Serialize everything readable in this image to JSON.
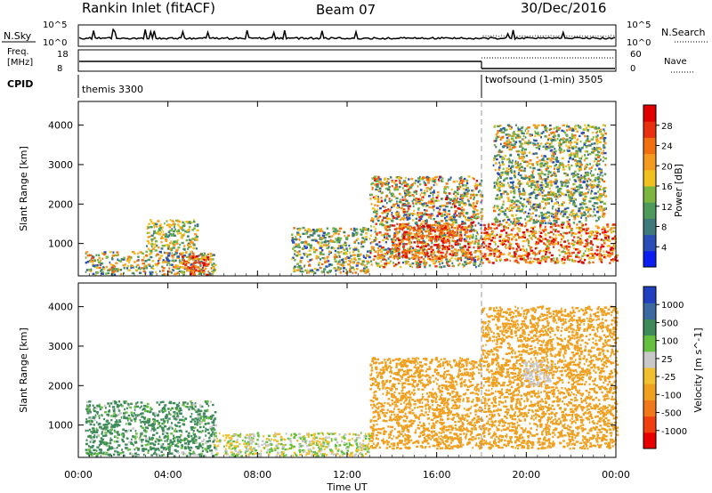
{
  "header": {
    "station": "Rankin Inlet (fitACF)",
    "beam": "Beam 07",
    "date": "30/Dec/2016"
  },
  "top_panels": {
    "nsky_label": "N.Sky",
    "nsearch_label": "N.Search",
    "nsky_ticks": [
      "10^5",
      "10^0"
    ],
    "nsearch_ticks": [
      "10^5",
      "10^0"
    ],
    "freq_label_1": "Freq.",
    "freq_label_2": "[MHz]",
    "freq_ticks": [
      "18",
      "8"
    ],
    "nave_label": "Nave",
    "nave_ticks": [
      "60",
      "0"
    ],
    "cpid_label": "CPID",
    "modes": [
      {
        "name": "themis 3300",
        "start_hour": 0
      },
      {
        "name": "twofsound (1-min) 3505",
        "start_hour": 18
      }
    ]
  },
  "colors": {
    "power": [
      "#0a1ef0",
      "#2a4eb8",
      "#3f7a7a",
      "#4e9a5a",
      "#7cb640",
      "#f0c020",
      "#f59a20",
      "#f07010",
      "#e83010",
      "#e00000"
    ],
    "velocity": [
      "#e80000",
      "#f04010",
      "#f07818",
      "#f0a020",
      "#f0c030",
      "#c8c8c8",
      "#66c040",
      "#3e8a5a",
      "#3a6aa0",
      "#2040c0"
    ]
  },
  "chart_data": [
    {
      "type": "heatmap",
      "title": "",
      "xlabel": "Time UT",
      "ylabel": "Slant Range [km]",
      "xlim": [
        0,
        24
      ],
      "ylim": [
        180,
        4600
      ],
      "x_ticks": [
        0,
        4,
        8,
        12,
        16,
        20,
        24
      ],
      "x_tick_labels": [
        "00:00",
        "04:00",
        "08:00",
        "12:00",
        "16:00",
        "20:00",
        "00:00"
      ],
      "y_ticks": [
        1000,
        2000,
        3000,
        4000
      ],
      "colorbar": {
        "label": "Power [dB]",
        "min": 0,
        "max": 32,
        "tick_labels": [
          "4",
          "8",
          "12",
          "16",
          "20",
          "24",
          "28"
        ],
        "tick_values": [
          4,
          8,
          12,
          16,
          20,
          24,
          28
        ]
      },
      "regions": [
        {
          "t0": 0.3,
          "t1": 6.1,
          "r0": 200,
          "r1": 800,
          "vmin": 4,
          "vmax": 26
        },
        {
          "t0": 3.0,
          "t1": 5.3,
          "r0": 800,
          "r1": 1600,
          "vmin": 8,
          "vmax": 22
        },
        {
          "t0": 4.6,
          "t1": 5.8,
          "r0": 200,
          "r1": 700,
          "vmin": 20,
          "vmax": 32
        },
        {
          "t0": 9.5,
          "t1": 13.0,
          "r0": 250,
          "r1": 1400,
          "vmin": 4,
          "vmax": 24
        },
        {
          "t0": 13.0,
          "t1": 18.0,
          "r0": 400,
          "r1": 2700,
          "vmin": 4,
          "vmax": 30
        },
        {
          "t0": 14.0,
          "t1": 17.5,
          "r0": 600,
          "r1": 1500,
          "vmin": 18,
          "vmax": 32
        },
        {
          "t0": 18.0,
          "t1": 24.0,
          "r0": 500,
          "r1": 1500,
          "vmin": 14,
          "vmax": 32
        },
        {
          "t0": 18.5,
          "t1": 23.5,
          "r0": 1500,
          "r1": 4000,
          "vmin": 4,
          "vmax": 24
        }
      ]
    },
    {
      "type": "heatmap",
      "title": "",
      "xlabel": "Time UT",
      "ylabel": "Slant Range [km]",
      "xlim": [
        0,
        24
      ],
      "ylim": [
        180,
        4600
      ],
      "x_ticks": [
        0,
        4,
        8,
        12,
        16,
        20,
        24
      ],
      "x_tick_labels": [
        "00:00",
        "04:00",
        "08:00",
        "12:00",
        "16:00",
        "20:00",
        "00:00"
      ],
      "y_ticks": [
        1000,
        2000,
        3000,
        4000
      ],
      "colorbar": {
        "label": "Velocity [m s^-1]",
        "tick_labels": [
          "-1000",
          "-500",
          "-100",
          "-25",
          "25",
          "100",
          "500",
          "1000"
        ],
        "tick_values": [
          -1000,
          -500,
          -100,
          -25,
          25,
          100,
          500,
          1000
        ]
      },
      "regions": [
        {
          "t0": 0.3,
          "t1": 6.1,
          "r0": 200,
          "r1": 1600,
          "vmin": -25,
          "vmax": 500
        },
        {
          "t0": 6.0,
          "t1": 13.0,
          "r0": 200,
          "r1": 800,
          "vmin": -100,
          "vmax": 100
        },
        {
          "t0": 13.0,
          "t1": 18.0,
          "r0": 400,
          "r1": 2700,
          "vmin": -500,
          "vmax": -100
        },
        {
          "t0": 18.0,
          "t1": 24.0,
          "r0": 400,
          "r1": 4000,
          "vmin": -500,
          "vmax": -100
        },
        {
          "t0": 19.8,
          "t1": 21.0,
          "r0": 2000,
          "r1": 2600,
          "vmin": -25,
          "vmax": 25
        }
      ]
    }
  ]
}
